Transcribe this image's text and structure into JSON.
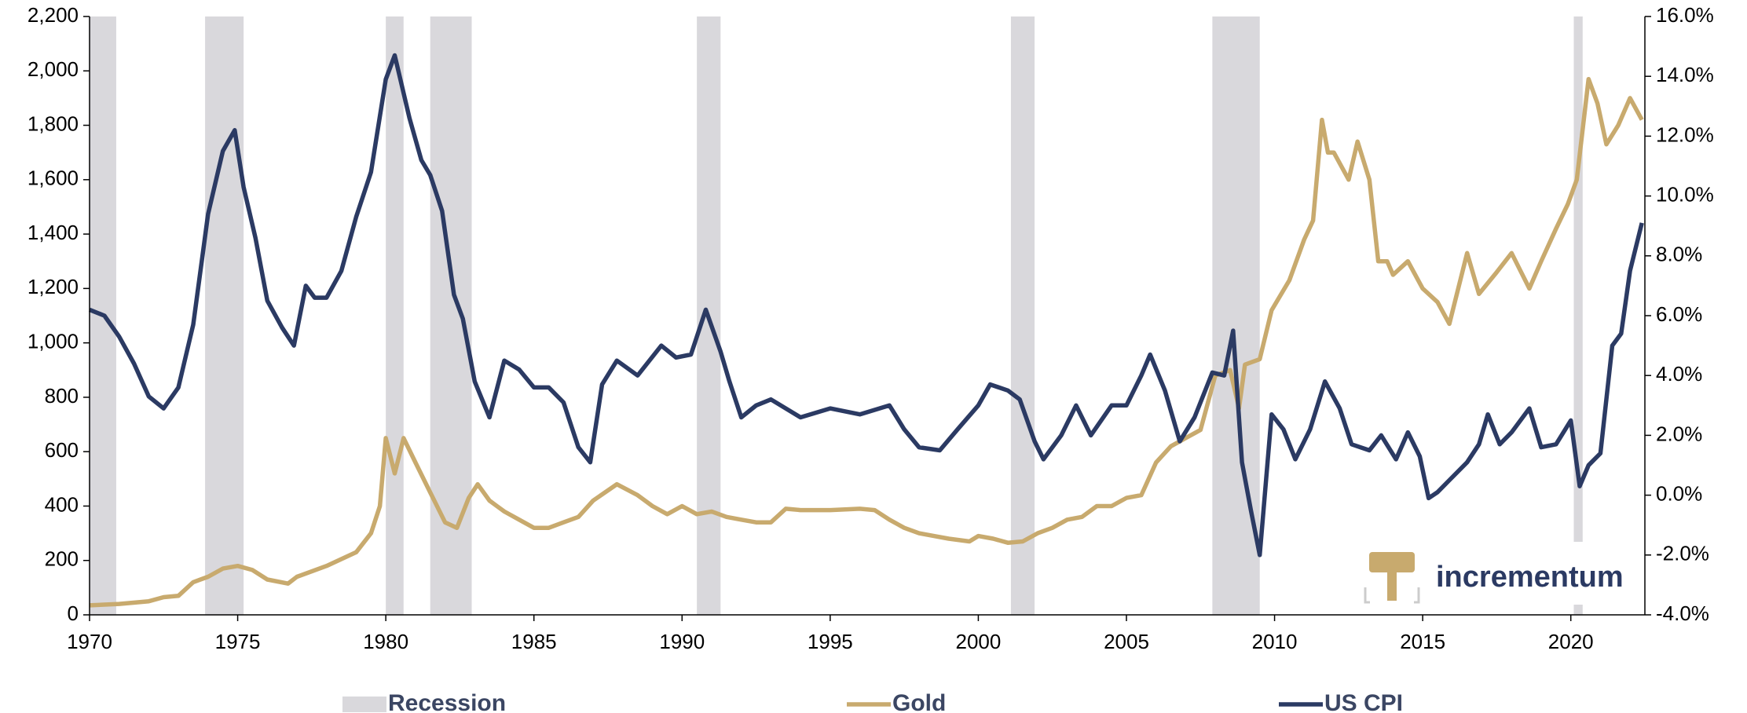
{
  "chart_data": {
    "type": "line",
    "xlim": [
      1970,
      2022.5
    ],
    "xticks": [
      1970,
      1975,
      1980,
      1985,
      1990,
      1995,
      2000,
      2005,
      2010,
      2015,
      2020
    ],
    "ylim": [
      0,
      2200
    ],
    "yticks": [
      0,
      200,
      400,
      600,
      800,
      {
        "value": 1000,
        "label": "1,000"
      },
      {
        "value": 1200,
        "label": "1,200"
      },
      {
        "value": 1400,
        "label": "1,400"
      },
      {
        "value": 1600,
        "label": "1,600"
      },
      {
        "value": 1800,
        "label": "1,800"
      },
      {
        "value": 2000,
        "label": "2,000"
      },
      {
        "value": 2200,
        "label": "2,200"
      }
    ],
    "y2lim": [
      -4,
      16
    ],
    "y2ticks": [
      {
        "value": -4,
        "label": "-4.0%"
      },
      {
        "value": -2,
        "label": "-2.0%"
      },
      {
        "value": 0,
        "label": "0.0%"
      },
      {
        "value": 2,
        "label": "2.0%"
      },
      {
        "value": 4,
        "label": "4.0%"
      },
      {
        "value": 6,
        "label": "6.0%"
      },
      {
        "value": 8,
        "label": "8.0%"
      },
      {
        "value": 10,
        "label": "10.0%"
      },
      {
        "value": 12,
        "label": "12.0%"
      },
      {
        "value": 14,
        "label": "14.0%"
      },
      {
        "value": 16,
        "label": "16.0%"
      }
    ],
    "recession": {
      "name": "Recession",
      "color": "#d9d8dc",
      "periods": [
        [
          1970,
          1970.9
        ],
        [
          1973.9,
          1975.2
        ],
        [
          1980.0,
          1980.6
        ],
        [
          1981.5,
          1982.9
        ],
        [
          1990.5,
          1991.3
        ],
        [
          2001.1,
          2001.9
        ],
        [
          2007.9,
          2009.5
        ],
        [
          2020.1,
          2020.4
        ]
      ]
    },
    "series": [
      {
        "name": "Gold",
        "color": "#c8aa6e",
        "x": [
          1970,
          1971,
          1972,
          1972.5,
          1973,
          1973.5,
          1974,
          1974.5,
          1975,
          1975.5,
          1976,
          1976.7,
          1977,
          1978,
          1979,
          1979.5,
          1979.8,
          1980.0,
          1980.3,
          1980.6,
          1981,
          1981.5,
          1982,
          1982.4,
          1982.8,
          1983.1,
          1983.5,
          1984,
          1984.5,
          1985,
          1985.5,
          1986,
          1986.5,
          1987,
          1987.8,
          1988.5,
          1989,
          1989.5,
          1990,
          1990.5,
          1991,
          1991.5,
          1992,
          1992.5,
          1993,
          1993.5,
          1994,
          1995,
          1996,
          1996.5,
          1997,
          1997.5,
          1998,
          1998.5,
          1999,
          1999.7,
          2000,
          2000.5,
          2001,
          2001.5,
          2002,
          2002.5,
          2003,
          2003.5,
          2004,
          2004.5,
          2005,
          2005.5,
          2006,
          2006.5,
          2007,
          2007.5,
          2008,
          2008.5,
          2008.8,
          2009,
          2009.5,
          2009.9,
          2010.5,
          2011,
          2011.3,
          2011.6,
          2011.8,
          2012,
          2012.5,
          2012.8,
          2013.2,
          2013.5,
          2013.8,
          2014,
          2014.5,
          2015,
          2015.5,
          2015.9,
          2016.5,
          2016.9,
          2017.5,
          2018,
          2018.6,
          2019,
          2019.5,
          2019.9,
          2020.2,
          2020.6,
          2020.9,
          2021.2,
          2021.6,
          2022,
          2022.4
        ],
        "values": [
          35,
          40,
          50,
          65,
          70,
          120,
          140,
          170,
          180,
          165,
          130,
          115,
          140,
          180,
          230,
          300,
          400,
          650,
          520,
          650,
          560,
          450,
          340,
          320,
          430,
          480,
          420,
          380,
          350,
          320,
          320,
          340,
          360,
          420,
          480,
          440,
          400,
          370,
          400,
          370,
          380,
          360,
          350,
          340,
          340,
          390,
          385,
          385,
          390,
          385,
          350,
          320,
          300,
          290,
          280,
          270,
          290,
          280,
          265,
          270,
          300,
          320,
          350,
          360,
          400,
          400,
          430,
          440,
          560,
          620,
          650,
          680,
          880,
          900,
          760,
          920,
          940,
          1120,
          1230,
          1380,
          1450,
          1820,
          1700,
          1700,
          1600,
          1740,
          1600,
          1300,
          1300,
          1250,
          1300,
          1200,
          1150,
          1070,
          1330,
          1180,
          1260,
          1330,
          1200,
          1300,
          1420,
          1510,
          1600,
          1970,
          1880,
          1730,
          1800,
          1900,
          1820
        ]
      },
      {
        "name": "US CPI",
        "color": "#2b3a63",
        "axis": "y2",
        "x": [
          1970,
          1970.5,
          1971,
          1971.5,
          1972,
          1972.5,
          1973,
          1973.5,
          1974,
          1974.5,
          1974.9,
          1975.2,
          1975.6,
          1976,
          1976.5,
          1976.9,
          1977.3,
          1977.6,
          1978,
          1978.5,
          1979,
          1979.5,
          1980,
          1980.3,
          1980.8,
          1981.2,
          1981.5,
          1981.9,
          1982.3,
          1982.6,
          1983,
          1983.5,
          1984,
          1984.5,
          1985,
          1985.5,
          1986,
          1986.5,
          1986.9,
          1987.3,
          1987.8,
          1988.5,
          1989.3,
          1989.8,
          1990.3,
          1990.8,
          1991.3,
          1991.6,
          1992,
          1992.5,
          1993,
          1994,
          1995,
          1996,
          1997,
          1997.5,
          1998,
          1998.7,
          1999.3,
          2000,
          2000.4,
          2001,
          2001.4,
          2001.9,
          2002.2,
          2002.8,
          2003.3,
          2003.8,
          2004.5,
          2005,
          2005.5,
          2005.8,
          2006.3,
          2006.8,
          2007.3,
          2007.9,
          2008.3,
          2008.6,
          2008.9,
          2009.2,
          2009.5,
          2009.9,
          2010.3,
          2010.7,
          2011.2,
          2011.7,
          2012.2,
          2012.6,
          2013.2,
          2013.6,
          2014.1,
          2014.5,
          2014.9,
          2015.2,
          2015.5,
          2015.9,
          2016.5,
          2016.9,
          2017.2,
          2017.6,
          2018,
          2018.6,
          2019,
          2019.5,
          2020,
          2020.3,
          2020.6,
          2021,
          2021.4,
          2021.7,
          2022,
          2022.4
        ],
        "values": [
          6.2,
          6.0,
          5.3,
          4.4,
          3.3,
          2.9,
          3.6,
          5.7,
          9.4,
          11.5,
          12.2,
          10.3,
          8.6,
          6.5,
          5.6,
          5.0,
          7.0,
          6.6,
          6.6,
          7.5,
          9.3,
          10.8,
          13.9,
          14.7,
          12.6,
          11.2,
          10.7,
          9.5,
          6.7,
          5.9,
          3.8,
          2.6,
          4.5,
          4.2,
          3.6,
          3.6,
          3.1,
          1.6,
          1.1,
          3.7,
          4.5,
          4.0,
          5.0,
          4.6,
          4.7,
          6.2,
          4.8,
          3.8,
          2.6,
          3.0,
          3.2,
          2.6,
          2.9,
          2.7,
          3.0,
          2.2,
          1.6,
          1.5,
          2.2,
          3.0,
          3.7,
          3.5,
          3.2,
          1.8,
          1.2,
          2.0,
          3.0,
          2.0,
          3.0,
          3.0,
          4.0,
          4.7,
          3.5,
          1.8,
          2.6,
          4.1,
          4.0,
          5.5,
          1.1,
          -0.5,
          -2.0,
          2.7,
          2.2,
          1.2,
          2.2,
          3.8,
          2.9,
          1.7,
          1.5,
          2.0,
          1.2,
          2.1,
          1.3,
          -0.1,
          0.1,
          0.5,
          1.1,
          1.7,
          2.7,
          1.7,
          2.1,
          2.9,
          1.6,
          1.7,
          2.5,
          0.3,
          1.0,
          1.4,
          5.0,
          5.4,
          7.5,
          9.1
        ]
      }
    ],
    "logo": "incrementum"
  }
}
